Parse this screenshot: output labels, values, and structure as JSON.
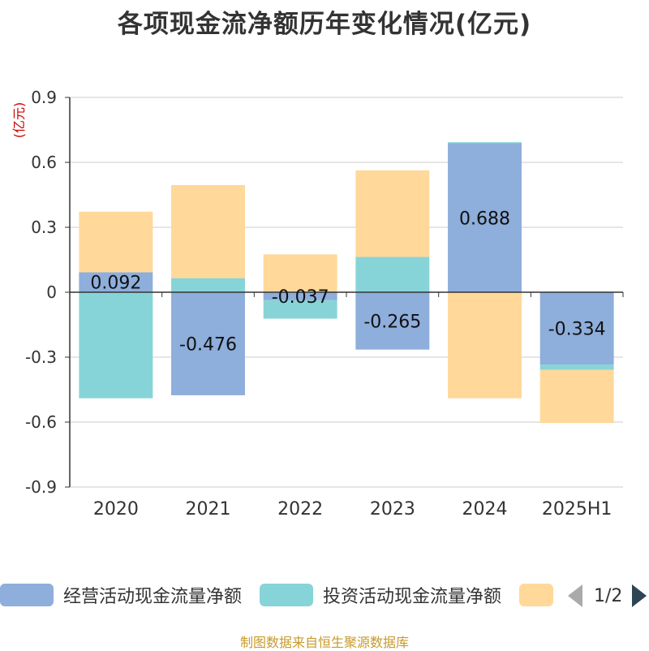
{
  "title": "各项现金流净额历年变化情况(亿元)",
  "y_unit": "(亿元)",
  "source": "制图数据来自恒生聚源数据库",
  "legend": {
    "items": [
      {
        "label": "经营活动现金流量净额",
        "color": "#8eaedb"
      },
      {
        "label": "投资活动现金流量净额",
        "color": "#87d4d8"
      },
      {
        "label": "",
        "color": "#ffd89a"
      }
    ],
    "page_label": "1/2"
  },
  "chart_data": {
    "type": "bar",
    "stacked": true,
    "categories": [
      "2020",
      "2021",
      "2022",
      "2023",
      "2024",
      "2025H1"
    ],
    "series": [
      {
        "name": "经营活动现金流量净额",
        "color": "#8eaedb",
        "values": [
          0.092,
          -0.476,
          -0.037,
          -0.265,
          0.688,
          -0.334
        ],
        "labels_shown": true
      },
      {
        "name": "投资活动现金流量净额",
        "color": "#87d4d8",
        "values": [
          -0.49,
          0.065,
          -0.085,
          0.163,
          0.005,
          -0.025
        ],
        "labels_shown": false
      },
      {
        "name": "",
        "color": "#ffd89a",
        "values": [
          0.28,
          0.43,
          0.175,
          0.4,
          -0.49,
          -0.245
        ],
        "labels_shown": false
      }
    ],
    "data_labels": [
      "0.092",
      "-0.476",
      "-0.037",
      "-0.265",
      "0.688",
      "-0.334"
    ],
    "y_ticks": [
      "0.9",
      "0.6",
      "0.3",
      "0",
      "-0.3",
      "-0.6",
      "-0.9"
    ],
    "ylim": [
      -0.9,
      0.9
    ],
    "grid": true,
    "legend_position": "bottom"
  }
}
